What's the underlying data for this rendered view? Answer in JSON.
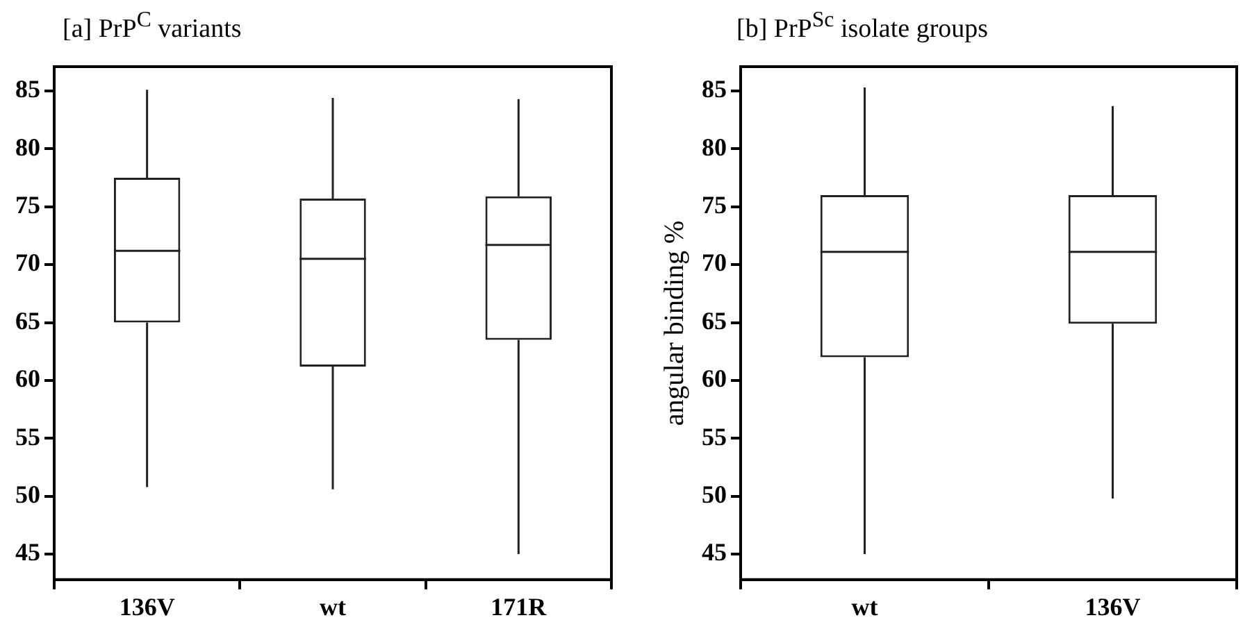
{
  "chart_data": [
    {
      "type": "box",
      "title": "[a] PrP$^{C}$ variants",
      "categories": [
        "136V",
        "wt",
        "171R"
      ],
      "boxes": [
        {
          "low": 50.8,
          "q1": 65.0,
          "median": 71.2,
          "q3": 77.5,
          "high": 85.1
        },
        {
          "low": 50.6,
          "q1": 61.2,
          "median": 70.5,
          "q3": 75.7,
          "high": 84.4
        },
        {
          "low": 45.0,
          "q1": 63.5,
          "median": 71.7,
          "q3": 75.9,
          "high": 84.3
        }
      ],
      "ylim": [
        42.8,
        87.1
      ],
      "yticks": [
        45,
        50,
        55,
        60,
        65,
        70,
        75,
        80,
        85
      ],
      "grid": false,
      "legend": false
    },
    {
      "type": "box",
      "title": "[b] PrP$^{Sc}$ isolate groups",
      "ylabel": "angular binding %",
      "categories": [
        "wt",
        "136V"
      ],
      "boxes": [
        {
          "low": 45.0,
          "q1": 62.0,
          "median": 71.1,
          "q3": 76.0,
          "high": 85.3
        },
        {
          "low": 49.8,
          "q1": 64.9,
          "median": 71.1,
          "q3": 76.0,
          "high": 83.7
        }
      ],
      "ylim": [
        42.8,
        87.1
      ],
      "yticks": [
        45,
        50,
        55,
        60,
        65,
        70,
        75,
        80,
        85
      ],
      "grid": false,
      "legend": false
    }
  ]
}
